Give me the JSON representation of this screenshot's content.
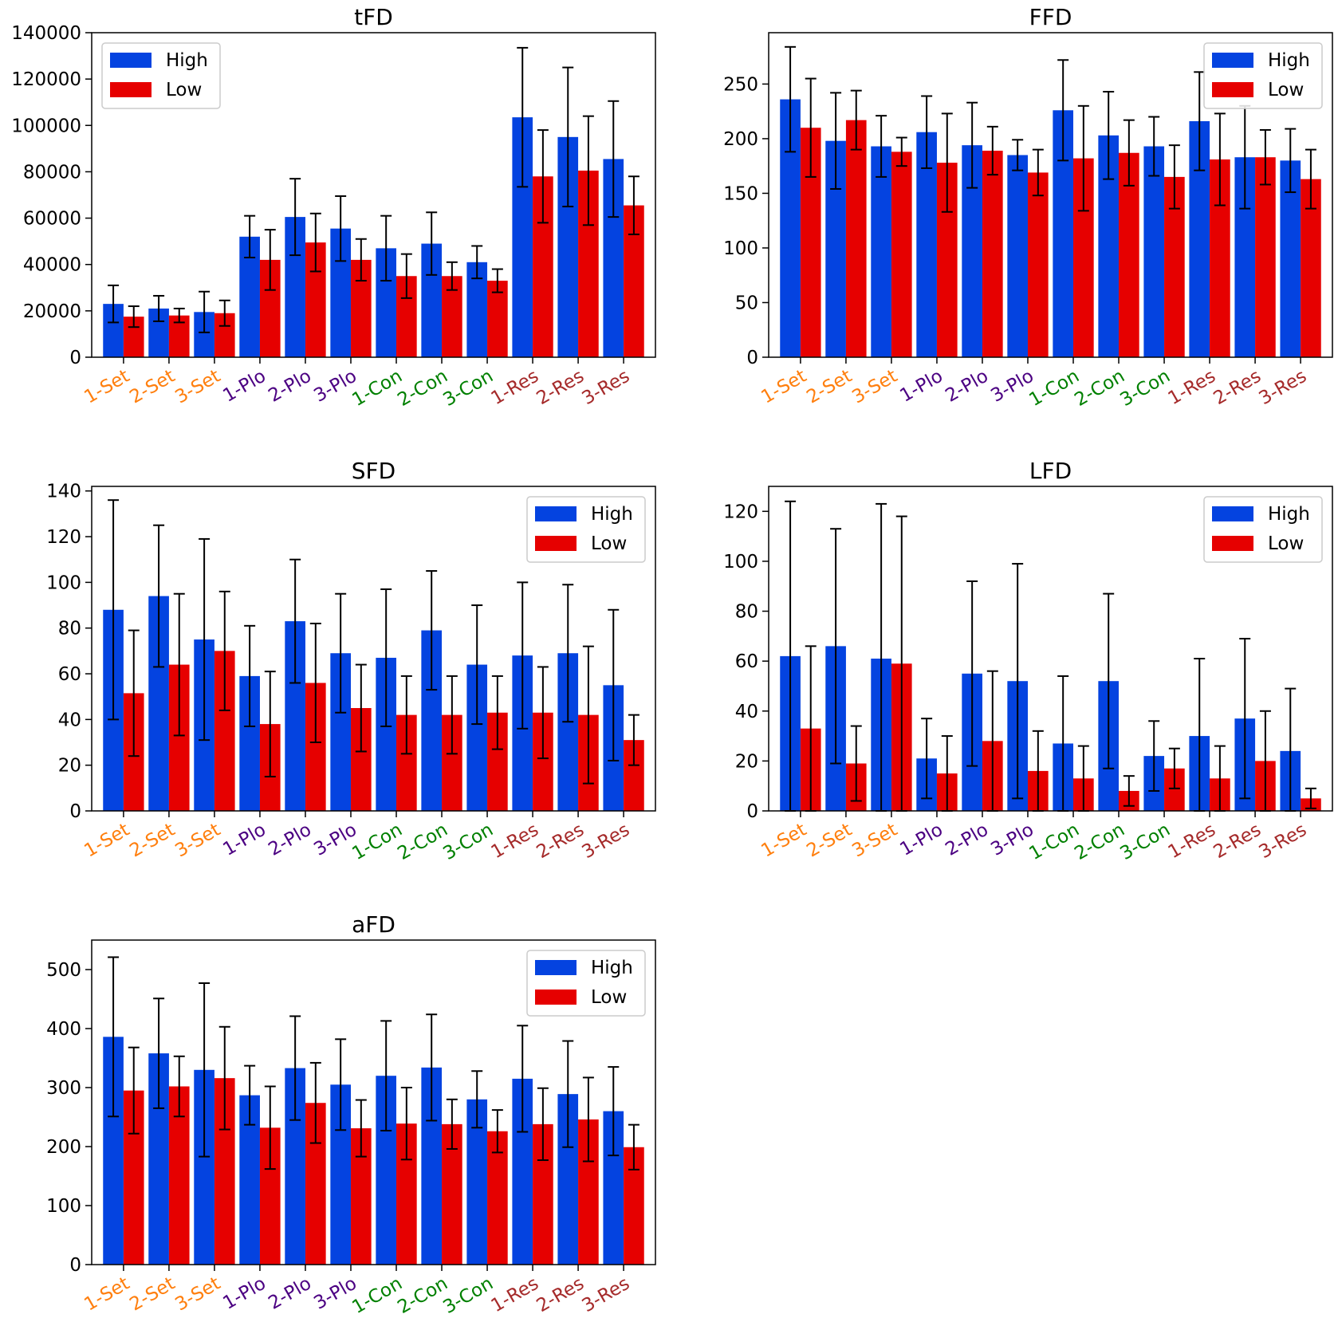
{
  "figure": {
    "category_colors": [
      "#ff7f0e",
      "#ff7f0e",
      "#ff7f0e",
      "#4b0082",
      "#4b0082",
      "#4b0082",
      "#008000",
      "#008000",
      "#008000",
      "#a52a2a",
      "#a52a2a",
      "#a52a2a"
    ],
    "series_colors": {
      "High": "#0443e0",
      "Low": "#e60000"
    }
  },
  "chart_data": [
    {
      "type": "bar",
      "title": "tFD",
      "xlabel": "",
      "ylabel": "",
      "categories": [
        "1-Set",
        "2-Set",
        "3-Set",
        "1-Plo",
        "2-Plo",
        "3-Plo",
        "1-Con",
        "2-Con",
        "3-Con",
        "1-Res",
        "2-Res",
        "3-Res"
      ],
      "ylim": [
        0,
        140000
      ],
      "yticks": [
        0,
        20000,
        40000,
        60000,
        80000,
        100000,
        120000,
        140000
      ],
      "legend_position": "upper-left",
      "series": [
        {
          "name": "High",
          "values": [
            23000,
            21000,
            19500,
            52000,
            60500,
            55500,
            47000,
            49000,
            41000,
            103500,
            95000,
            85500
          ],
          "errors": [
            8000,
            5500,
            8800,
            9000,
            16500,
            14000,
            14000,
            13500,
            7000,
            30000,
            30000,
            25000
          ]
        },
        {
          "name": "Low",
          "values": [
            17500,
            18000,
            19000,
            42000,
            49500,
            42000,
            35000,
            35000,
            33000,
            78000,
            80500,
            65500
          ],
          "errors": [
            4500,
            3000,
            5500,
            13000,
            12500,
            9000,
            9500,
            6000,
            5000,
            20000,
            23500,
            12500
          ]
        }
      ]
    },
    {
      "type": "bar",
      "title": "FFD",
      "xlabel": "",
      "ylabel": "",
      "categories": [
        "1-Set",
        "2-Set",
        "3-Set",
        "1-Plo",
        "2-Plo",
        "3-Plo",
        "1-Con",
        "2-Con",
        "3-Con",
        "1-Res",
        "2-Res",
        "3-Res"
      ],
      "ylim": [
        0,
        297
      ],
      "yticks": [
        0,
        50,
        100,
        150,
        200,
        250
      ],
      "legend_position": "upper-right",
      "series": [
        {
          "name": "High",
          "values": [
            236,
            198,
            193,
            206,
            194,
            185,
            226,
            203,
            193,
            216,
            183,
            180
          ],
          "errors": [
            48,
            44,
            28,
            33,
            39,
            14,
            46,
            40,
            27,
            45,
            47,
            29
          ]
        },
        {
          "name": "Low",
          "values": [
            210,
            217,
            188,
            178,
            189,
            169,
            182,
            187,
            165,
            181,
            183,
            163
          ],
          "errors": [
            45,
            27,
            13,
            45,
            22,
            21,
            48,
            30,
            29,
            42,
            25,
            27
          ]
        }
      ]
    },
    {
      "type": "bar",
      "title": "SFD",
      "xlabel": "",
      "ylabel": "",
      "categories": [
        "1-Set",
        "2-Set",
        "3-Set",
        "1-Plo",
        "2-Plo",
        "3-Plo",
        "1-Con",
        "2-Con",
        "3-Con",
        "1-Res",
        "2-Res",
        "3-Res"
      ],
      "ylim": [
        0,
        142
      ],
      "yticks": [
        0,
        20,
        40,
        60,
        80,
        100,
        120,
        140
      ],
      "legend_position": "upper-right",
      "series": [
        {
          "name": "High",
          "values": [
            88,
            94,
            75,
            59,
            83,
            69,
            67,
            79,
            64,
            68,
            69,
            55
          ],
          "errors": [
            48,
            31,
            44,
            22,
            27,
            26,
            30,
            26,
            26,
            32,
            30,
            33
          ]
        },
        {
          "name": "Low",
          "values": [
            51.5,
            64,
            70,
            38,
            56,
            45,
            42,
            42,
            43,
            43,
            42,
            31
          ],
          "errors": [
            27.5,
            31,
            26,
            23,
            26,
            19,
            17,
            17,
            16,
            20,
            30,
            11
          ]
        }
      ]
    },
    {
      "type": "bar",
      "title": "LFD",
      "xlabel": "",
      "ylabel": "",
      "categories": [
        "1-Set",
        "2-Set",
        "3-Set",
        "1-Plo",
        "2-Plo",
        "3-Plo",
        "1-Con",
        "2-Con",
        "3-Con",
        "1-Res",
        "2-Res",
        "3-Res"
      ],
      "ylim": [
        0,
        130
      ],
      "yticks": [
        0,
        20,
        40,
        60,
        80,
        100,
        120
      ],
      "legend_position": "upper-right",
      "series": [
        {
          "name": "High",
          "values": [
            62,
            66,
            61,
            21,
            55,
            52,
            27,
            52,
            22,
            30,
            37,
            24
          ],
          "errors": [
            62,
            47,
            62,
            16,
            37,
            47,
            27,
            35,
            14,
            31,
            32,
            25
          ]
        },
        {
          "name": "Low",
          "values": [
            33,
            19,
            59,
            15,
            28,
            16,
            13,
            8,
            17,
            13,
            20,
            5
          ],
          "errors": [
            33,
            15,
            59,
            15,
            28,
            16,
            13,
            6,
            8,
            13,
            20,
            4
          ]
        }
      ]
    },
    {
      "type": "bar",
      "title": "aFD",
      "xlabel": "",
      "ylabel": "",
      "categories": [
        "1-Set",
        "2-Set",
        "3-Set",
        "1-Plo",
        "2-Plo",
        "3-Plo",
        "1-Con",
        "2-Con",
        "3-Con",
        "1-Res",
        "2-Res",
        "3-Res"
      ],
      "ylim": [
        0,
        550
      ],
      "yticks": [
        0,
        100,
        200,
        300,
        400,
        500
      ],
      "legend_position": "upper-right",
      "series": [
        {
          "name": "High",
          "values": [
            386,
            358,
            330,
            287,
            333,
            305,
            320,
            334,
            280,
            315,
            289,
            260
          ],
          "errors": [
            135,
            93,
            147,
            50,
            88,
            77,
            93,
            90,
            48,
            90,
            90,
            75
          ]
        },
        {
          "name": "Low",
          "values": [
            295,
            302,
            316,
            232,
            274,
            231,
            239,
            238,
            226,
            238,
            246,
            199
          ],
          "errors": [
            73,
            51,
            87,
            70,
            68,
            48,
            61,
            42,
            36,
            61,
            71,
            38
          ]
        }
      ]
    }
  ]
}
